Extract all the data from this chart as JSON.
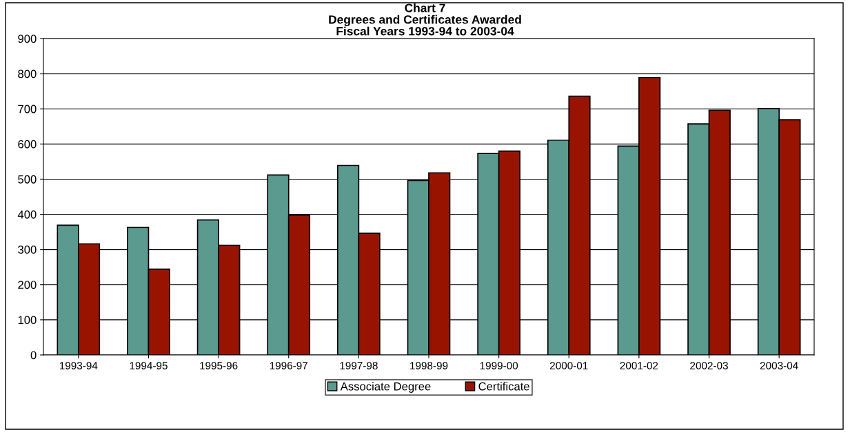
{
  "chart_data": {
    "type": "bar",
    "title": "Chart 7\nDegrees and Certificates Awarded\nFiscal Years 1993-94 to 2003-04",
    "categories": [
      "1993-94",
      "1994-95",
      "1995-96",
      "1996-97",
      "1997-98",
      "1998-99",
      "1999-00",
      "2000-01",
      "2001-02",
      "2002-03",
      "2003-04"
    ],
    "series": [
      {
        "name": "Associate Degree",
        "color": "#5b9a8f",
        "values": [
          369,
          363,
          384,
          512,
          539,
          496,
          573,
          611,
          594,
          657,
          701
        ]
      },
      {
        "name": "Certificate",
        "color": "#991400",
        "values": [
          316,
          244,
          312,
          398,
          346,
          518,
          580,
          736,
          789,
          696,
          669
        ]
      }
    ],
    "ylim": [
      0,
      900
    ],
    "yticks": [
      0,
      100,
      200,
      300,
      400,
      500,
      600,
      700,
      800,
      900
    ],
    "grid": "y",
    "legend": "bottom"
  }
}
